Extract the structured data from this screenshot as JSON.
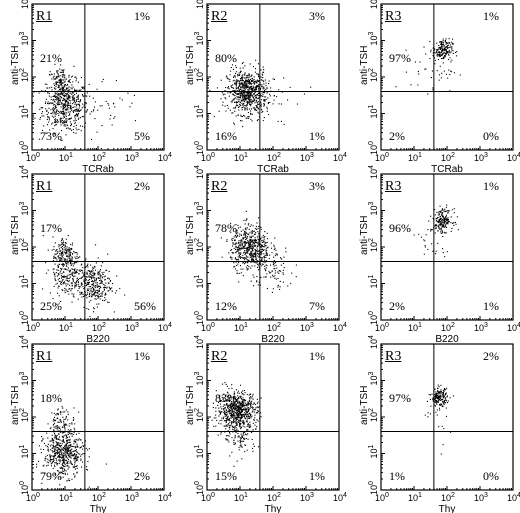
{
  "chart_data": [
    {
      "type": "scatter",
      "region_label": "R1",
      "xlabel": "TCRab",
      "ylabel": "anti-TSH",
      "xlim": [
        1,
        10000
      ],
      "ylim": [
        1,
        10000
      ],
      "scale": "log",
      "x_ticks": [
        "10",
        "10",
        "10",
        "10",
        "10"
      ],
      "x_exps": [
        "0",
        "1",
        "2",
        "3",
        "4"
      ],
      "y_ticks": [
        "10",
        "10",
        "10",
        "10",
        "10"
      ],
      "y_exps": [
        "0",
        "1",
        "2",
        "3",
        "4"
      ],
      "gate": {
        "x": 40,
        "y": 40
      },
      "quadrants": {
        "upper_left": "21%",
        "upper_right": "1%",
        "lower_left": "73%",
        "lower_right": "5%"
      },
      "clusters": [
        {
          "cx": 1.0,
          "cy": 1.2,
          "sx": 0.35,
          "sy": 0.35,
          "n": 500
        },
        {
          "cx": 0.85,
          "cy": 1.8,
          "sx": 0.2,
          "sy": 0.25,
          "n": 150
        },
        {
          "cx": 2.2,
          "cy": 1.2,
          "sx": 0.6,
          "sy": 0.4,
          "n": 40
        }
      ]
    },
    {
      "type": "scatter",
      "region_label": "R2",
      "xlabel": "TCRab",
      "ylabel": "anti-TSH",
      "xlim": [
        1,
        10000
      ],
      "ylim": [
        1,
        10000
      ],
      "scale": "log",
      "x_ticks": [
        "10",
        "10",
        "10",
        "10",
        "10"
      ],
      "x_exps": [
        "0",
        "1",
        "2",
        "3",
        "4"
      ],
      "y_ticks": [
        "10",
        "10",
        "10",
        "10",
        "10"
      ],
      "y_exps": [
        "0",
        "1",
        "2",
        "3",
        "4"
      ],
      "gate": {
        "x": 40,
        "y": 40
      },
      "quadrants": {
        "upper_left": "80%",
        "upper_right": "3%",
        "lower_left": "16%",
        "lower_right": "1%"
      },
      "clusters": [
        {
          "cx": 1.2,
          "cy": 1.6,
          "sx": 0.3,
          "sy": 0.3,
          "n": 700
        },
        {
          "cx": 1.8,
          "cy": 1.4,
          "sx": 0.6,
          "sy": 0.4,
          "n": 40
        }
      ]
    },
    {
      "type": "scatter",
      "region_label": "R3",
      "xlabel": "TCRab",
      "ylabel": "anti-TSH",
      "xlim": [
        1,
        10000
      ],
      "ylim": [
        1,
        10000
      ],
      "scale": "log",
      "x_ticks": [
        "10",
        "10",
        "10",
        "10",
        "10"
      ],
      "x_exps": [
        "0",
        "1",
        "2",
        "3",
        "4"
      ],
      "y_ticks": [
        "10",
        "10",
        "10",
        "10",
        "10"
      ],
      "y_exps": [
        "0",
        "1",
        "2",
        "3",
        "4"
      ],
      "gate": {
        "x": 40,
        "y": 40
      },
      "quadrants": {
        "upper_left": "97%",
        "upper_right": "1%",
        "lower_left": "2%",
        "lower_right": "0%"
      },
      "clusters": [
        {
          "cx": 1.85,
          "cy": 2.75,
          "sx": 0.15,
          "sy": 0.15,
          "n": 180
        },
        {
          "cx": 1.6,
          "cy": 2.2,
          "sx": 0.35,
          "sy": 0.3,
          "n": 40
        }
      ]
    },
    {
      "type": "scatter",
      "region_label": "R1",
      "xlabel": "B220",
      "ylabel": "anti-TSH",
      "xlim": [
        1,
        10000
      ],
      "ylim": [
        1,
        10000
      ],
      "scale": "log",
      "x_ticks": [
        "10",
        "10",
        "10",
        "10",
        "10"
      ],
      "x_exps": [
        "0",
        "1",
        "2",
        "3",
        "4"
      ],
      "y_ticks": [
        "10",
        "10",
        "10",
        "10",
        "10"
      ],
      "y_exps": [
        "0",
        "1",
        "2",
        "3",
        "4"
      ],
      "gate": {
        "x": 40,
        "y": 40
      },
      "quadrants": {
        "upper_left": "17%",
        "upper_right": "2%",
        "lower_left": "25%",
        "lower_right": "56%"
      },
      "clusters": [
        {
          "cx": 1.0,
          "cy": 1.8,
          "sx": 0.2,
          "sy": 0.25,
          "n": 200
        },
        {
          "cx": 1.0,
          "cy": 1.2,
          "sx": 0.25,
          "sy": 0.25,
          "n": 150
        },
        {
          "cx": 1.8,
          "cy": 1.0,
          "sx": 0.3,
          "sy": 0.3,
          "n": 350
        }
      ]
    },
    {
      "type": "scatter",
      "region_label": "R2",
      "xlabel": "B220",
      "ylabel": "anti-TSH",
      "xlim": [
        1,
        10000
      ],
      "ylim": [
        1,
        10000
      ],
      "scale": "log",
      "x_ticks": [
        "10",
        "10",
        "10",
        "10",
        "10"
      ],
      "x_exps": [
        "0",
        "1",
        "2",
        "3",
        "4"
      ],
      "y_ticks": [
        "10",
        "10",
        "10",
        "10",
        "10"
      ],
      "y_exps": [
        "0",
        "1",
        "2",
        "3",
        "4"
      ],
      "gate": {
        "x": 40,
        "y": 40
      },
      "quadrants": {
        "upper_left": "78%",
        "upper_right": "3%",
        "lower_left": "12%",
        "lower_right": "7%"
      },
      "clusters": [
        {
          "cx": 1.3,
          "cy": 2.0,
          "sx": 0.3,
          "sy": 0.3,
          "n": 550
        },
        {
          "cx": 1.9,
          "cy": 1.4,
          "sx": 0.35,
          "sy": 0.3,
          "n": 100
        }
      ]
    },
    {
      "type": "scatter",
      "region_label": "R3",
      "xlabel": "B220",
      "ylabel": "anti-TSH",
      "xlim": [
        1,
        10000
      ],
      "ylim": [
        1,
        10000
      ],
      "scale": "log",
      "x_ticks": [
        "10",
        "10",
        "10",
        "10",
        "10"
      ],
      "x_exps": [
        "0",
        "1",
        "2",
        "3",
        "4"
      ],
      "y_ticks": [
        "10",
        "10",
        "10",
        "10",
        "10"
      ],
      "y_exps": [
        "0",
        "1",
        "2",
        "3",
        "4"
      ],
      "gate": {
        "x": 40,
        "y": 40
      },
      "quadrants": {
        "upper_left": "96%",
        "upper_right": "1%",
        "lower_left": "2%",
        "lower_right": "1%"
      },
      "clusters": [
        {
          "cx": 1.85,
          "cy": 2.75,
          "sx": 0.15,
          "sy": 0.15,
          "n": 180
        },
        {
          "cx": 1.6,
          "cy": 2.1,
          "sx": 0.3,
          "sy": 0.3,
          "n": 30
        }
      ]
    },
    {
      "type": "scatter",
      "region_label": "R1",
      "xlabel": "Thy",
      "ylabel": "anti-TSH",
      "xlim": [
        1,
        10000
      ],
      "ylim": [
        1,
        10000
      ],
      "scale": "log",
      "x_ticks": [
        "10",
        "10",
        "10",
        "10",
        "10"
      ],
      "x_exps": [
        "0",
        "1",
        "2",
        "3",
        "4"
      ],
      "y_ticks": [
        "10",
        "10",
        "10",
        "10",
        "10"
      ],
      "y_exps": [
        "0",
        "1",
        "2",
        "3",
        "4"
      ],
      "gate": {
        "x": 40,
        "y": 40
      },
      "quadrants": {
        "upper_left": "18%",
        "upper_right": "1%",
        "lower_left": "79%",
        "lower_right": "2%"
      },
      "clusters": [
        {
          "cx": 0.95,
          "cy": 1.0,
          "sx": 0.3,
          "sy": 0.3,
          "n": 500
        },
        {
          "cx": 0.9,
          "cy": 1.8,
          "sx": 0.2,
          "sy": 0.25,
          "n": 120
        }
      ]
    },
    {
      "type": "scatter",
      "region_label": "R2",
      "xlabel": "Thy",
      "ylabel": "anti-TSH",
      "xlim": [
        1,
        10000
      ],
      "ylim": [
        1,
        10000
      ],
      "scale": "log",
      "x_ticks": [
        "10",
        "10",
        "10",
        "10",
        "10"
      ],
      "x_exps": [
        "0",
        "1",
        "2",
        "3",
        "4"
      ],
      "y_ticks": [
        "10",
        "10",
        "10",
        "10",
        "10"
      ],
      "y_exps": [
        "0",
        "1",
        "2",
        "3",
        "4"
      ],
      "gate": {
        "x": 40,
        "y": 40
      },
      "quadrants": {
        "upper_left": "83%",
        "upper_right": "1%",
        "lower_left": "15%",
        "lower_right": "1%"
      },
      "clusters": [
        {
          "cx": 0.9,
          "cy": 2.2,
          "sx": 0.3,
          "sy": 0.25,
          "n": 650
        },
        {
          "cx": 1.0,
          "cy": 1.5,
          "sx": 0.25,
          "sy": 0.3,
          "n": 120
        }
      ]
    },
    {
      "type": "scatter",
      "region_label": "R3",
      "xlabel": "Thy",
      "ylabel": "anti-TSH",
      "xlim": [
        1,
        10000
      ],
      "ylim": [
        1,
        10000
      ],
      "scale": "log",
      "x_ticks": [
        "10",
        "10",
        "10",
        "10",
        "10"
      ],
      "x_exps": [
        "0",
        "1",
        "2",
        "3",
        "4"
      ],
      "y_ticks": [
        "10",
        "10",
        "10",
        "10",
        "10"
      ],
      "y_exps": [
        "0",
        "1",
        "2",
        "3",
        "4"
      ],
      "gate": {
        "x": 40,
        "y": 40
      },
      "quadrants": {
        "upper_left": "97%",
        "upper_right": "2%",
        "lower_left": "1%",
        "lower_right": "0%"
      },
      "clusters": [
        {
          "cx": 1.75,
          "cy": 2.55,
          "sx": 0.12,
          "sy": 0.12,
          "n": 170
        },
        {
          "cx": 1.7,
          "cy": 2.0,
          "sx": 0.3,
          "sy": 0.5,
          "n": 20
        }
      ]
    }
  ]
}
